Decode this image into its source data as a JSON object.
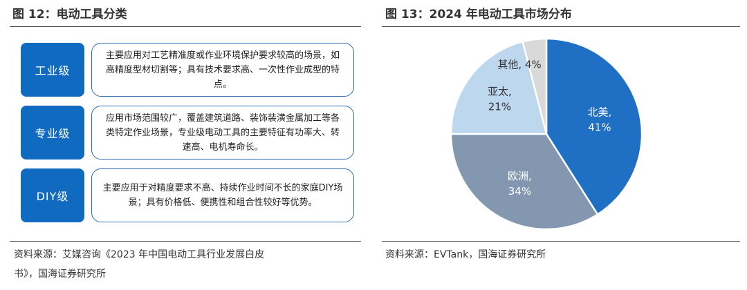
{
  "left_figure": {
    "title": "图 12：电动工具分类",
    "categories": [
      {
        "label": "工业级",
        "description": "主要应用对工艺精准度或作业环境保护要求较高的场景，如高精度型材切割等；具有技术要求高、一次性作业成型的特点。"
      },
      {
        "label": "专业级",
        "description": "应用市场范围较广，覆盖建筑道路、装饰装潢金属加工等各类特定作业场景，专业级电动工具的主要特征有功率大、转速高、电机寿命长。"
      },
      {
        "label": "DIY级",
        "description": "主要应用于对精度要求不高、持续作业时间不长的家庭DIY场景；具有价格低、便携性和组合性较好等优势。"
      }
    ],
    "source_line1": "资料来源：艾媒咨询《2023 年中国电动工具行业发展白皮",
    "source_line2": "书》，国海证券研究所"
  },
  "right_figure": {
    "title": "图 13：2024 年电动工具市场分布",
    "source": "资料来源：EVTank，国海证券研究所"
  },
  "chart_data": {
    "type": "pie",
    "title": "图 13：2024 年电动工具市场分布",
    "slices": [
      {
        "name": "北美",
        "value": 41,
        "label_line1": "北美,",
        "label_line2": "41%",
        "color": "#1f6fc5",
        "text_color": "#ffffff"
      },
      {
        "name": "欧洲",
        "value": 34,
        "label_line1": "欧洲,",
        "label_line2": "34%",
        "color": "#8497b0",
        "text_color": "#ffffff"
      },
      {
        "name": "亚太",
        "value": 21,
        "label_line1": "亚太,",
        "label_line2": "21%",
        "color": "#bdd7ee",
        "text_color": "#333333"
      },
      {
        "name": "其他",
        "value": 4,
        "label_line1": "其他, 4%",
        "label_line2": "",
        "color": "#d9d9d9",
        "text_color": "#333333"
      }
    ],
    "start": "12 o'clock",
    "direction": "clockwise",
    "slice_border_color": "#ffffff"
  }
}
